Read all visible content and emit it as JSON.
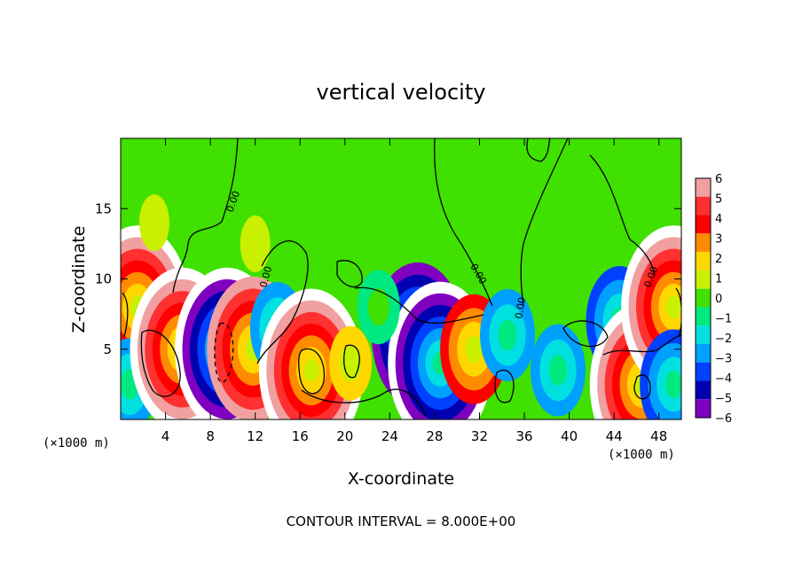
{
  "chart_data": {
    "type": "heatmap",
    "title": "vertical velocity",
    "xlabel": "X-coordinate",
    "ylabel": "Z-coordinate",
    "x_unit": "(×1000 m)",
    "y_unit": "(×1000 m)",
    "xlim": [
      0,
      50
    ],
    "ylim": [
      0,
      20
    ],
    "x_ticks": [
      "4",
      "8",
      "12",
      "16",
      "20",
      "24",
      "28",
      "32",
      "36",
      "40",
      "44",
      "48"
    ],
    "y_ticks": [
      "5",
      "10",
      "15"
    ],
    "contour_label": "0.00",
    "footnote": "CONTOUR INTERVAL = 8.000E+00",
    "colorbar": {
      "labels": [
        "6",
        "5",
        "4",
        "3",
        "2",
        "1",
        "0",
        "−1",
        "−2",
        "−3",
        "−4",
        "−5",
        "−6"
      ],
      "colors": [
        "#f0a0a0",
        "#ff3030",
        "#ff0000",
        "#ff8c00",
        "#ffd700",
        "#c8f000",
        "#40e000",
        "#00e880",
        "#00e0e0",
        "#00a0ff",
        "#0040ff",
        "#0000b0",
        "#8000c0"
      ],
      "levels": [
        6,
        5,
        4,
        3,
        2,
        1,
        0,
        -1,
        -2,
        -3,
        -4,
        -5,
        -6
      ]
    },
    "features": [
      {
        "x": 1.5,
        "z": 8.0,
        "value": 7
      },
      {
        "x": 0.8,
        "z": 2.5,
        "value": -3
      },
      {
        "x": 5.5,
        "z": 5.0,
        "value": 7
      },
      {
        "x": 9.5,
        "z": 5.0,
        "value": -7
      },
      {
        "x": 11.8,
        "z": 5.0,
        "value": 6
      },
      {
        "x": 14.0,
        "z": 6.5,
        "value": -3
      },
      {
        "x": 17.0,
        "z": 3.5,
        "value": 7
      },
      {
        "x": 20.5,
        "z": 4.0,
        "value": 2
      },
      {
        "x": 26.5,
        "z": 6.0,
        "value": -6
      },
      {
        "x": 28.5,
        "z": 4.0,
        "value": -7
      },
      {
        "x": 31.5,
        "z": 5.0,
        "value": 4
      },
      {
        "x": 34.5,
        "z": 6.0,
        "value": -3
      },
      {
        "x": 39.0,
        "z": 3.5,
        "value": -3
      },
      {
        "x": 44.5,
        "z": 7.0,
        "value": -4
      },
      {
        "x": 46.5,
        "z": 2.5,
        "value": 7
      },
      {
        "x": 49.3,
        "z": 8.0,
        "value": 7
      },
      {
        "x": 49.3,
        "z": 2.5,
        "value": -4
      },
      {
        "x": 23.0,
        "z": 8.0,
        "value": -1.5
      },
      {
        "x": 12.0,
        "z": 12.5,
        "value": 0.5
      },
      {
        "x": 3.0,
        "z": 14.0,
        "value": 1
      }
    ]
  }
}
